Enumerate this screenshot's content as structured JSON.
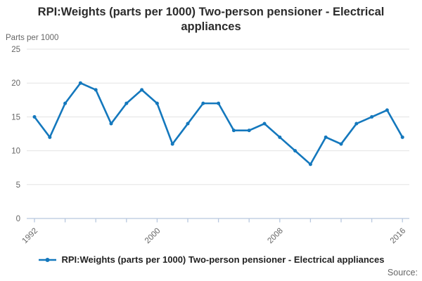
{
  "header": {
    "title": "RPI:Weights (parts per 1000) Two-person pensioner - Electrical appliances"
  },
  "legend": {
    "label": "RPI:Weights (parts per 1000) Two-person pensioner - Electrical appliances"
  },
  "footer": {
    "source_label": "Source:"
  },
  "colors": {
    "series_line": "#1478bd",
    "gridline": "#e3e3e3",
    "axis_line": "#b7c7de",
    "tick_text": "#666666",
    "title_text": "#2b2b2b"
  },
  "chart_data": {
    "type": "line",
    "title": "RPI:Weights (parts per 1000) Two-person pensioner - Electrical appliances",
    "ylabel": "Parts per 1000",
    "xlabel": "",
    "x": [
      1992,
      1993,
      1994,
      1995,
      1996,
      1997,
      1998,
      1999,
      2000,
      2001,
      2002,
      2003,
      2004,
      2005,
      2006,
      2007,
      2008,
      2009,
      2010,
      2011,
      2012,
      2013,
      2014,
      2015,
      2016
    ],
    "series": [
      {
        "name": "RPI:Weights (parts per 1000) Two-person pensioner - Electrical appliances",
        "values": [
          15,
          12,
          17,
          20,
          19,
          14,
          17,
          19,
          17,
          11,
          14,
          17,
          17,
          13,
          13,
          14,
          12,
          10,
          8,
          12,
          11,
          14,
          15,
          16,
          12
        ]
      }
    ],
    "ylim": [
      0,
      25
    ],
    "yticks": [
      0,
      5,
      10,
      15,
      20,
      25
    ],
    "xtick_interval": 2,
    "xticks_labeled": [
      1992,
      2000,
      2008,
      2016
    ],
    "grid": true,
    "legend_position": "bottom"
  }
}
